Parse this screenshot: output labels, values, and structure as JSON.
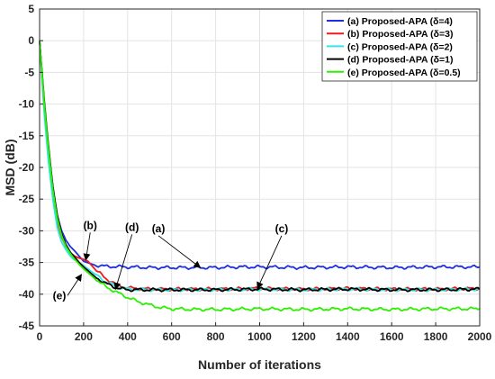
{
  "chart_data": {
    "type": "line",
    "xlabel": "Number of iterations",
    "ylabel": "MSD (dB)",
    "xlim": [
      0,
      2000
    ],
    "ylim": [
      -45,
      5
    ],
    "xticks": [
      0,
      200,
      400,
      600,
      800,
      1000,
      1200,
      1400,
      1600,
      1800,
      2000
    ],
    "yticks": [
      5,
      0,
      -5,
      -10,
      -15,
      -20,
      -25,
      -30,
      -35,
      -40,
      -45
    ],
    "grid": true,
    "legend_position": "top-right",
    "series": [
      {
        "name": "(a) Proposed-APA (δ=4)",
        "color": "#1f2ee0",
        "x": [
          0,
          20,
          40,
          60,
          80,
          100,
          120,
          140,
          160,
          180,
          200,
          250,
          300,
          400,
          500,
          600,
          700,
          800,
          900,
          1000,
          1200,
          1400,
          1600,
          1800,
          2000
        ],
        "y": [
          0,
          -10,
          -17,
          -23,
          -27.5,
          -30,
          -31.5,
          -32.5,
          -33.2,
          -34,
          -34.8,
          -35.4,
          -35.6,
          -35.7,
          -35.8,
          -35.8,
          -35.8,
          -35.8,
          -35.7,
          -35.7,
          -35.8,
          -35.7,
          -35.8,
          -35.7,
          -35.7
        ]
      },
      {
        "name": "(b) Proposed-APA (δ=3)",
        "color": "#ee1c1c",
        "x": [
          0,
          20,
          40,
          60,
          80,
          100,
          120,
          140,
          160,
          180,
          200,
          220,
          250,
          300,
          350,
          400,
          500,
          600,
          800,
          1000,
          1200,
          1400,
          1600,
          1800,
          2000
        ],
        "y": [
          0,
          -10,
          -17.5,
          -24,
          -28.5,
          -31,
          -32.5,
          -33.5,
          -34,
          -34.3,
          -34.5,
          -34.8,
          -36,
          -37.5,
          -38.5,
          -39,
          -39.2,
          -39.2,
          -39.2,
          -39.1,
          -39.2,
          -39.1,
          -39.2,
          -39.2,
          -39.1
        ]
      },
      {
        "name": "(c) Proposed-APA (δ=2)",
        "color": "#33e5e5",
        "x": [
          0,
          20,
          40,
          60,
          80,
          100,
          120,
          140,
          160,
          180,
          200,
          250,
          300,
          350,
          400,
          500,
          600,
          800,
          1000,
          1200,
          1400,
          1600,
          1800,
          2000
        ],
        "y": [
          0,
          -11,
          -19,
          -25,
          -29.5,
          -31.8,
          -33,
          -34,
          -34.6,
          -35,
          -35.5,
          -36.8,
          -38,
          -38.8,
          -39.2,
          -39.3,
          -39.3,
          -39.3,
          -39.2,
          -39.3,
          -39.2,
          -39.3,
          -39.3,
          -39.2
        ]
      },
      {
        "name": "(d) Proposed-APA (δ=1)",
        "color": "#000000",
        "x": [
          0,
          20,
          40,
          60,
          80,
          100,
          120,
          140,
          160,
          180,
          200,
          250,
          300,
          350,
          400,
          500,
          600,
          800,
          1000,
          1200,
          1400,
          1600,
          1800,
          2000
        ],
        "y": [
          0,
          -9,
          -16.5,
          -23,
          -27.5,
          -30.5,
          -32.2,
          -33.4,
          -34.2,
          -35,
          -35.7,
          -37.2,
          -38.3,
          -39,
          -39.3,
          -39.3,
          -39.3,
          -39.3,
          -39.2,
          -39.3,
          -39.2,
          -39.3,
          -39.3,
          -39.2
        ]
      },
      {
        "name": "(e) Proposed-APA (δ=0.5)",
        "color": "#2bf000",
        "x": [
          0,
          20,
          40,
          60,
          80,
          100,
          120,
          140,
          160,
          180,
          200,
          250,
          300,
          350,
          400,
          450,
          500,
          550,
          600,
          700,
          800,
          1000,
          1200,
          1400,
          1600,
          1800,
          2000
        ],
        "y": [
          0,
          -9.5,
          -17,
          -23.5,
          -28,
          -30.8,
          -32.5,
          -33.6,
          -34.5,
          -35.3,
          -36,
          -37.5,
          -38.8,
          -39.7,
          -40.5,
          -41.2,
          -41.7,
          -42.1,
          -42.3,
          -42.4,
          -42.4,
          -42.3,
          -42.4,
          -42.3,
          -42.4,
          -42.3,
          -42.3
        ]
      }
    ],
    "annotations": [
      {
        "label": "(a)",
        "text_x": 540,
        "text_y": -30.2,
        "arrow_to": [
          730,
          -35.8
        ]
      },
      {
        "label": "(b)",
        "text_x": 230,
        "text_y": -29.7,
        "arrow_to": [
          210,
          -34.6
        ]
      },
      {
        "label": "(c)",
        "text_x": 1100,
        "text_y": -30.2,
        "arrow_to": [
          990,
          -39.1
        ]
      },
      {
        "label": "(d)",
        "text_x": 420,
        "text_y": -30,
        "arrow_to": [
          345,
          -39.2
        ]
      },
      {
        "label": "(e)",
        "text_x": 90,
        "text_y": -40.8,
        "arrow_to": [
          190,
          -36.9
        ]
      }
    ]
  }
}
